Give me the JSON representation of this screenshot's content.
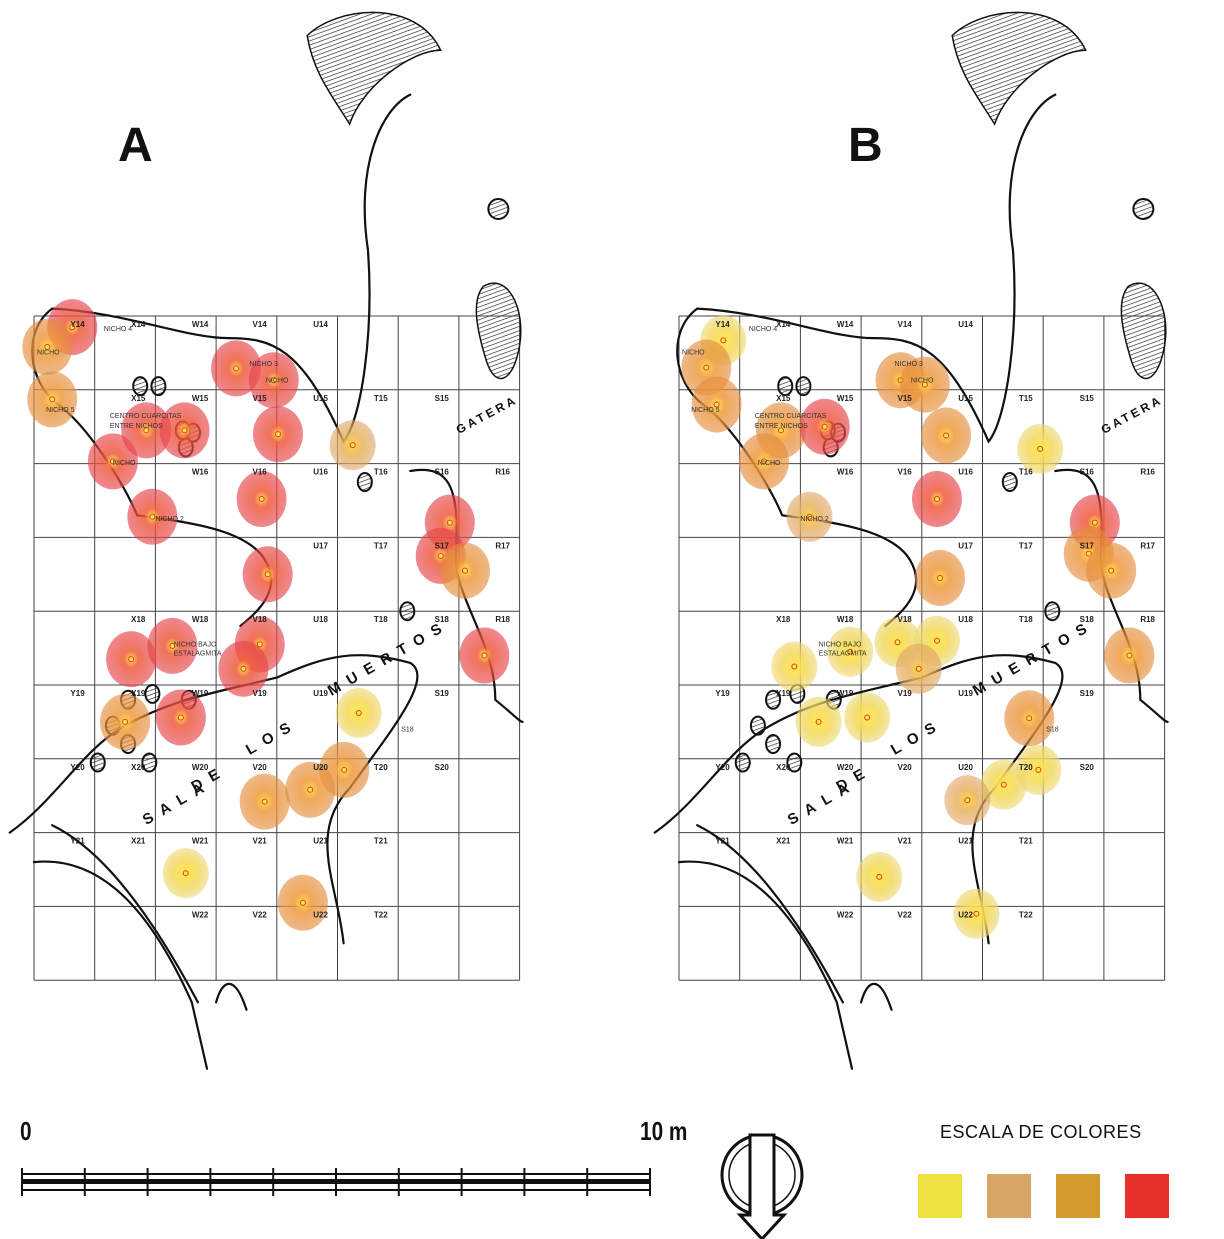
{
  "panels": [
    {
      "letter": "A",
      "cells": [
        {
          "label": "Y14",
          "c": 0,
          "r": 0
        },
        {
          "label": "X14",
          "c": 1,
          "r": 0
        },
        {
          "label": "W14",
          "c": 2,
          "r": 0
        },
        {
          "label": "V14",
          "c": 3,
          "r": 0
        },
        {
          "label": "U14",
          "c": 4,
          "r": 0
        },
        {
          "label": "X15",
          "c": 1,
          "r": 1
        },
        {
          "label": "W15",
          "c": 2,
          "r": 1
        },
        {
          "label": "V15",
          "c": 3,
          "r": 1
        },
        {
          "label": "U15",
          "c": 4,
          "r": 1
        },
        {
          "label": "T15",
          "c": 5,
          "r": 1
        },
        {
          "label": "S15",
          "c": 6,
          "r": 1
        },
        {
          "label": "W16",
          "c": 2,
          "r": 2
        },
        {
          "label": "V16",
          "c": 3,
          "r": 2
        },
        {
          "label": "U16",
          "c": 4,
          "r": 2
        },
        {
          "label": "T16",
          "c": 5,
          "r": 2
        },
        {
          "label": "S16",
          "c": 6,
          "r": 2
        },
        {
          "label": "R16",
          "c": 7,
          "r": 2
        },
        {
          "label": "U17",
          "c": 4,
          "r": 3
        },
        {
          "label": "T17",
          "c": 5,
          "r": 3
        },
        {
          "label": "S17",
          "c": 6,
          "r": 3
        },
        {
          "label": "R17",
          "c": 7,
          "r": 3
        },
        {
          "label": "X18",
          "c": 1,
          "r": 4
        },
        {
          "label": "W18",
          "c": 2,
          "r": 4
        },
        {
          "label": "V18",
          "c": 3,
          "r": 4
        },
        {
          "label": "U18",
          "c": 4,
          "r": 4
        },
        {
          "label": "T18",
          "c": 5,
          "r": 4
        },
        {
          "label": "S18",
          "c": 6,
          "r": 4
        },
        {
          "label": "R18",
          "c": 7,
          "r": 4
        },
        {
          "label": "Y19",
          "c": 0,
          "r": 5
        },
        {
          "label": "X19",
          "c": 1,
          "r": 5
        },
        {
          "label": "W19",
          "c": 2,
          "r": 5
        },
        {
          "label": "V19",
          "c": 3,
          "r": 5
        },
        {
          "label": "U19",
          "c": 4,
          "r": 5
        },
        {
          "label": "S19",
          "c": 6,
          "r": 5
        },
        {
          "label": "Y20",
          "c": 0,
          "r": 6
        },
        {
          "label": "X20",
          "c": 1,
          "r": 6
        },
        {
          "label": "W20",
          "c": 2,
          "r": 6
        },
        {
          "label": "V20",
          "c": 3,
          "r": 6
        },
        {
          "label": "U20",
          "c": 4,
          "r": 6
        },
        {
          "label": "T20",
          "c": 5,
          "r": 6
        },
        {
          "label": "S20",
          "c": 6,
          "r": 6
        },
        {
          "label": "Y21",
          "c": 0,
          "r": 7
        },
        {
          "label": "X21",
          "c": 1,
          "r": 7
        },
        {
          "label": "W21",
          "c": 2,
          "r": 7
        },
        {
          "label": "V21",
          "c": 3,
          "r": 7
        },
        {
          "label": "U21",
          "c": 4,
          "r": 7
        },
        {
          "label": "T21",
          "c": 5,
          "r": 7
        },
        {
          "label": "W22",
          "c": 2,
          "r": 8
        },
        {
          "label": "V22",
          "c": 3,
          "r": 8
        },
        {
          "label": "U22",
          "c": 4,
          "r": 8
        },
        {
          "label": "T22",
          "c": 5,
          "r": 8
        }
      ],
      "notes": [
        "NICHO 4",
        "NICHO",
        "NICHO 5",
        "CENTRO CUARCITAS",
        "ENTRE NICHOS",
        "NICHO",
        "NICHO 3",
        "NICHO",
        "NICHO 2",
        "NICHO BAJO",
        "ESTALAGMITA",
        "S18"
      ],
      "spots": [
        {
          "c": 0.63,
          "r": 0.15,
          "level": 4
        },
        {
          "c": 0.22,
          "r": 0.42,
          "level": 3
        },
        {
          "c": 0.3,
          "r": 1.13,
          "level": 3
        },
        {
          "c": 1.3,
          "r": 1.97,
          "level": 4
        },
        {
          "c": 1.85,
          "r": 1.55,
          "level": 4
        },
        {
          "c": 2.48,
          "r": 1.55,
          "level": 4
        },
        {
          "c": 3.33,
          "r": 0.71,
          "level": 4
        },
        {
          "c": 3.95,
          "r": 0.87,
          "level": 4
        },
        {
          "c": 4.02,
          "r": 1.6,
          "level": 4
        },
        {
          "c": 3.75,
          "r": 2.48,
          "level": 4
        },
        {
          "c": 1.95,
          "r": 2.72,
          "level": 4
        },
        {
          "c": 5.25,
          "r": 1.75,
          "level": 2
        },
        {
          "c": 6.85,
          "r": 2.8,
          "level": 4
        },
        {
          "c": 6.7,
          "r": 3.25,
          "level": 4
        },
        {
          "c": 7.1,
          "r": 3.45,
          "level": 3
        },
        {
          "c": 3.85,
          "r": 3.5,
          "level": 4
        },
        {
          "c": 1.6,
          "r": 4.65,
          "level": 4
        },
        {
          "c": 2.28,
          "r": 4.47,
          "level": 4
        },
        {
          "c": 3.72,
          "r": 4.45,
          "level": 4
        },
        {
          "c": 3.45,
          "r": 4.78,
          "level": 4
        },
        {
          "c": 7.42,
          "r": 4.6,
          "level": 4
        },
        {
          "c": 1.5,
          "r": 5.5,
          "level": 3
        },
        {
          "c": 2.42,
          "r": 5.44,
          "level": 4
        },
        {
          "c": 5.35,
          "r": 5.38,
          "level": 1
        },
        {
          "c": 5.11,
          "r": 6.15,
          "level": 3
        },
        {
          "c": 3.8,
          "r": 6.58,
          "level": 3
        },
        {
          "c": 4.55,
          "r": 6.42,
          "level": 3
        },
        {
          "c": 2.5,
          "r": 7.55,
          "level": 1
        },
        {
          "c": 4.43,
          "r": 7.95,
          "level": 3
        }
      ],
      "cave_label": "SALA DE LOS MUERTOS",
      "gatera": "GATERA"
    },
    {
      "letter": "B",
      "cells": [
        {
          "label": "Y14",
          "c": 0,
          "r": 0
        },
        {
          "label": "X14",
          "c": 1,
          "r": 0
        },
        {
          "label": "W14",
          "c": 2,
          "r": 0
        },
        {
          "label": "V14",
          "c": 3,
          "r": 0
        },
        {
          "label": "U14",
          "c": 4,
          "r": 0
        },
        {
          "label": "X15",
          "c": 1,
          "r": 1
        },
        {
          "label": "W15",
          "c": 2,
          "r": 1
        },
        {
          "label": "V15",
          "c": 3,
          "r": 1
        },
        {
          "label": "U15",
          "c": 4,
          "r": 1
        },
        {
          "label": "T15",
          "c": 5,
          "r": 1
        },
        {
          "label": "S15",
          "c": 6,
          "r": 1
        },
        {
          "label": "W16",
          "c": 2,
          "r": 2
        },
        {
          "label": "V16",
          "c": 3,
          "r": 2
        },
        {
          "label": "U16",
          "c": 4,
          "r": 2
        },
        {
          "label": "T16",
          "c": 5,
          "r": 2
        },
        {
          "label": "S16",
          "c": 6,
          "r": 2
        },
        {
          "label": "R16",
          "c": 7,
          "r": 2
        },
        {
          "label": "U17",
          "c": 4,
          "r": 3
        },
        {
          "label": "T17",
          "c": 5,
          "r": 3
        },
        {
          "label": "S17",
          "c": 6,
          "r": 3
        },
        {
          "label": "R17",
          "c": 7,
          "r": 3
        },
        {
          "label": "X18",
          "c": 1,
          "r": 4
        },
        {
          "label": "W18",
          "c": 2,
          "r": 4
        },
        {
          "label": "V18",
          "c": 3,
          "r": 4
        },
        {
          "label": "U18",
          "c": 4,
          "r": 4
        },
        {
          "label": "T18",
          "c": 5,
          "r": 4
        },
        {
          "label": "S18",
          "c": 6,
          "r": 4
        },
        {
          "label": "R18",
          "c": 7,
          "r": 4
        },
        {
          "label": "Y19",
          "c": 0,
          "r": 5
        },
        {
          "label": "X19",
          "c": 1,
          "r": 5
        },
        {
          "label": "W19",
          "c": 2,
          "r": 5
        },
        {
          "label": "V19",
          "c": 3,
          "r": 5
        },
        {
          "label": "U19",
          "c": 4,
          "r": 5
        },
        {
          "label": "S19",
          "c": 6,
          "r": 5
        },
        {
          "label": "Y20",
          "c": 0,
          "r": 6
        },
        {
          "label": "X20",
          "c": 1,
          "r": 6
        },
        {
          "label": "W20",
          "c": 2,
          "r": 6
        },
        {
          "label": "V20",
          "c": 3,
          "r": 6
        },
        {
          "label": "U20",
          "c": 4,
          "r": 6
        },
        {
          "label": "T20",
          "c": 5,
          "r": 6
        },
        {
          "label": "S20",
          "c": 6,
          "r": 6
        },
        {
          "label": "Y21",
          "c": 0,
          "r": 7
        },
        {
          "label": "X21",
          "c": 1,
          "r": 7
        },
        {
          "label": "W21",
          "c": 2,
          "r": 7
        },
        {
          "label": "V21",
          "c": 3,
          "r": 7
        },
        {
          "label": "U21",
          "c": 4,
          "r": 7
        },
        {
          "label": "T21",
          "c": 5,
          "r": 7
        },
        {
          "label": "W22",
          "c": 2,
          "r": 8
        },
        {
          "label": "V22",
          "c": 3,
          "r": 8
        },
        {
          "label": "U22",
          "c": 4,
          "r": 8
        },
        {
          "label": "T22",
          "c": 5,
          "r": 8
        }
      ],
      "notes": [
        "NICHO 4",
        "NICHO",
        "NICHO 5",
        "CENTRO CUARCITAS",
        "ENTRE NICHOS",
        "NICHO",
        "NICHO 3",
        "NICHO",
        "NICHO 2",
        "NICHO BAJO",
        "ESTALAGMITA",
        "S18"
      ],
      "spots": [
        {
          "c": 0.73,
          "r": 0.33,
          "level": 1
        },
        {
          "c": 0.45,
          "r": 0.7,
          "level": 3
        },
        {
          "c": 0.62,
          "r": 1.2,
          "level": 3
        },
        {
          "c": 1.68,
          "r": 1.55,
          "level": 3
        },
        {
          "c": 2.4,
          "r": 1.5,
          "level": 4
        },
        {
          "c": 1.4,
          "r": 1.97,
          "level": 3
        },
        {
          "c": 3.65,
          "r": 0.87,
          "level": 3
        },
        {
          "c": 4.05,
          "r": 0.93,
          "level": 3
        },
        {
          "c": 4.4,
          "r": 1.62,
          "level": 3
        },
        {
          "c": 4.25,
          "r": 2.48,
          "level": 4
        },
        {
          "c": 2.15,
          "r": 2.72,
          "level": 2
        },
        {
          "c": 5.95,
          "r": 1.8,
          "level": 1
        },
        {
          "c": 6.85,
          "r": 2.8,
          "level": 4
        },
        {
          "c": 6.75,
          "r": 3.22,
          "level": 3
        },
        {
          "c": 7.12,
          "r": 3.45,
          "level": 3
        },
        {
          "c": 4.3,
          "r": 3.55,
          "level": 3
        },
        {
          "c": 2.82,
          "r": 4.55,
          "level": 1
        },
        {
          "c": 3.6,
          "r": 4.42,
          "level": 1
        },
        {
          "c": 4.25,
          "r": 4.4,
          "level": 1
        },
        {
          "c": 3.95,
          "r": 4.78,
          "level": 2
        },
        {
          "c": 7.42,
          "r": 4.6,
          "level": 3
        },
        {
          "c": 1.9,
          "r": 4.75,
          "level": 1
        },
        {
          "c": 2.3,
          "r": 5.5,
          "level": 1
        },
        {
          "c": 3.1,
          "r": 5.44,
          "level": 1
        },
        {
          "c": 5.77,
          "r": 5.45,
          "level": 3
        },
        {
          "c": 5.35,
          "r": 6.35,
          "level": 1
        },
        {
          "c": 4.75,
          "r": 6.56,
          "level": 2
        },
        {
          "c": 5.92,
          "r": 6.15,
          "level": 1
        },
        {
          "c": 3.3,
          "r": 7.6,
          "level": 1
        },
        {
          "c": 4.9,
          "r": 8.1,
          "level": 1
        }
      ],
      "cave_label": "SALA DE LOS MUERTOS",
      "gatera": "GATERA"
    }
  ],
  "scale": {
    "min_label": "0",
    "max_label": "10 m"
  },
  "legend": {
    "title": "ESCALA DE COLORES",
    "swatches": [
      "#eee340",
      "#d8a664",
      "#d49a2e",
      "#e63128"
    ]
  }
}
